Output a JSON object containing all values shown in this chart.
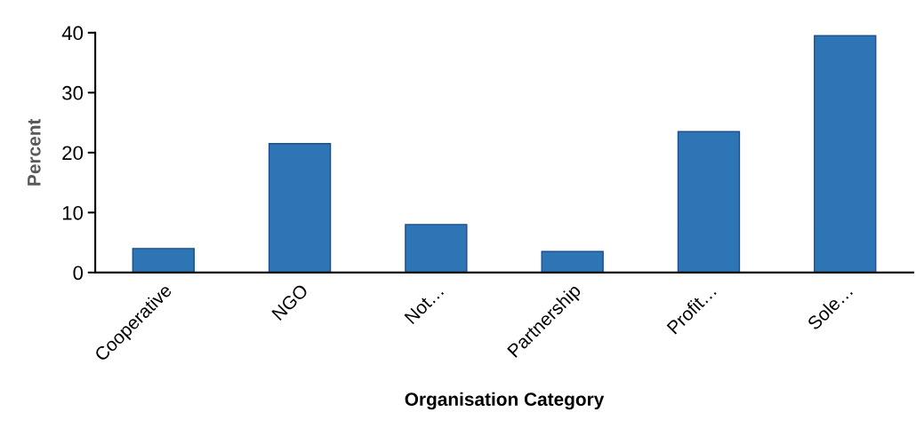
{
  "chart_data": {
    "type": "bar",
    "xlabel": "Organisation Category",
    "ylabel": "Percent",
    "categories": [
      "Cooperative",
      "NGO",
      "Not…",
      "Partnership",
      "Profit…",
      "Sole…"
    ],
    "values": [
      4,
      21.5,
      8,
      3.5,
      23.5,
      39.5
    ],
    "color": "#2e75b6",
    "ylim": [
      0,
      40
    ],
    "yticks": [
      0,
      10,
      20,
      30,
      40
    ],
    "grid": false,
    "legend": false
  }
}
